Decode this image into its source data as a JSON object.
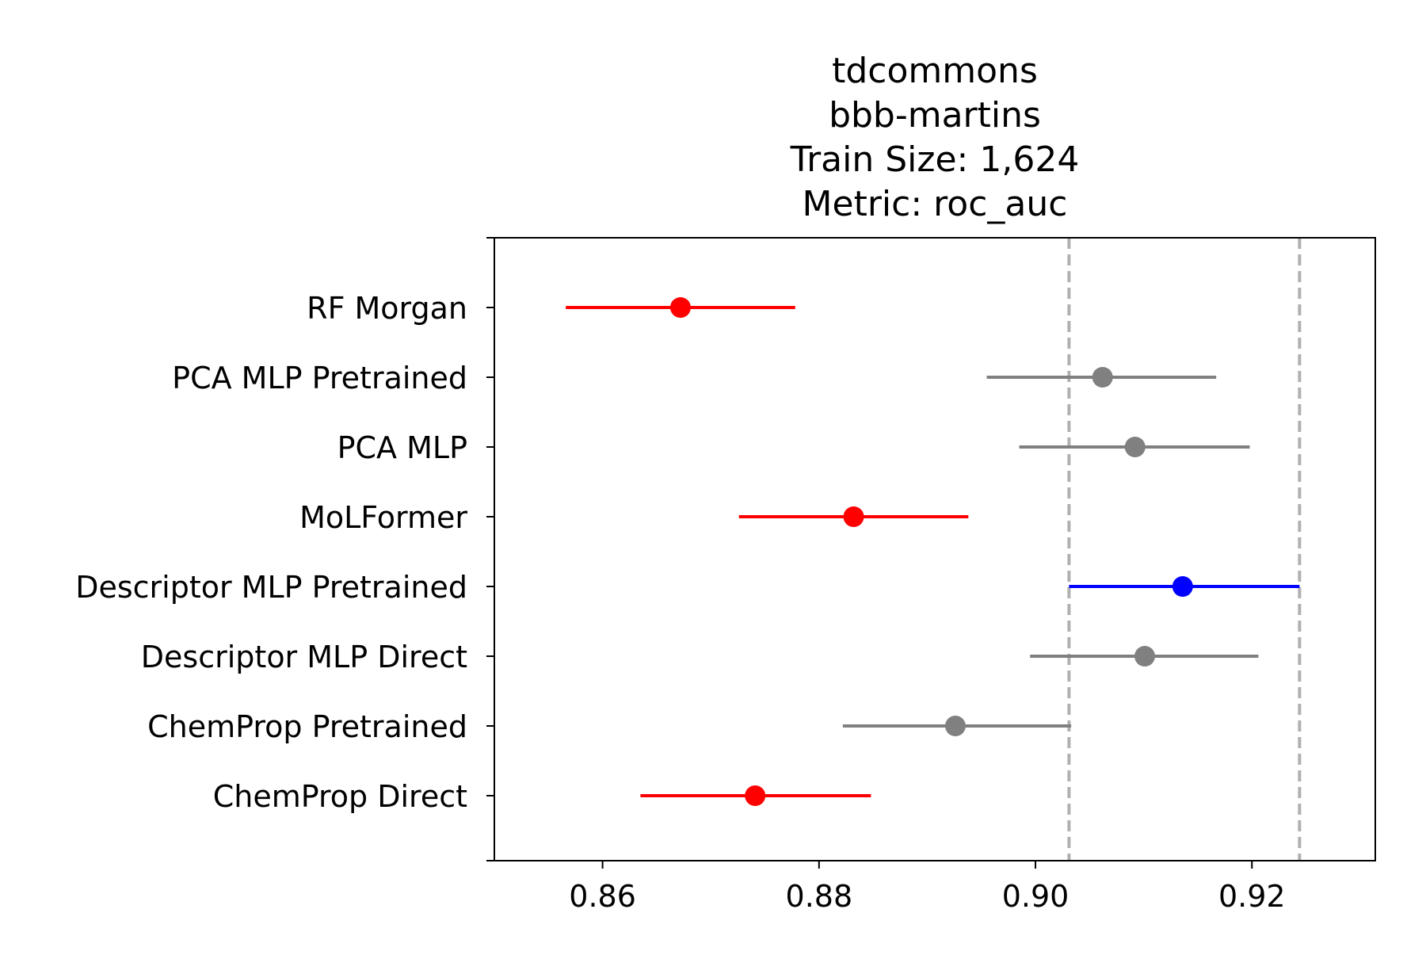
{
  "chart_data": {
    "type": "scatter",
    "title_lines": [
      "tdcommons",
      "bbb-martins",
      "Train Size: 1,624",
      "Metric: roc_auc"
    ],
    "xlabel": "",
    "ylabel": "",
    "xlim": [
      0.85,
      0.9314
    ],
    "x_ticks": [
      0.86,
      0.88,
      0.9,
      0.92
    ],
    "x_tick_labels": [
      "0.86",
      "0.88",
      "0.90",
      "0.92"
    ],
    "reference_lines": [
      0.9031,
      0.9244
    ],
    "reference_line_color": "#b0b0b0",
    "grid": false,
    "rows": [
      {
        "label": "RF Morgan",
        "mean": 0.8672,
        "low": 0.8566,
        "high": 0.8778,
        "color": "#ff0000"
      },
      {
        "label": "PCA MLP Pretrained",
        "mean": 0.9062,
        "low": 0.8955,
        "high": 0.9167,
        "color": "#808080"
      },
      {
        "label": "PCA MLP",
        "mean": 0.9092,
        "low": 0.8985,
        "high": 0.9198,
        "color": "#808080"
      },
      {
        "label": "MoLFormer",
        "mean": 0.8832,
        "low": 0.8726,
        "high": 0.8938,
        "color": "#ff0000"
      },
      {
        "label": "Descriptor MLP Pretrained",
        "mean": 0.9136,
        "low": 0.9031,
        "high": 0.9244,
        "color": "#0000ff"
      },
      {
        "label": "Descriptor MLP Direct",
        "mean": 0.9101,
        "low": 0.8995,
        "high": 0.9206,
        "color": "#808080"
      },
      {
        "label": "ChemProp Pretrained",
        "mean": 0.8926,
        "low": 0.8822,
        "high": 0.9033,
        "color": "#808080"
      },
      {
        "label": "ChemProp Direct",
        "mean": 0.8741,
        "low": 0.8635,
        "high": 0.8848,
        "color": "#ff0000"
      }
    ]
  }
}
